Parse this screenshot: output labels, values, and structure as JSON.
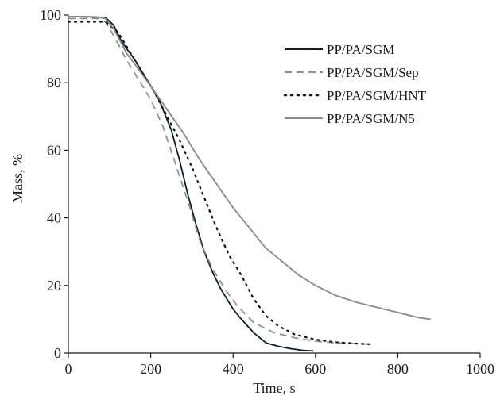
{
  "chart_data": {
    "type": "line",
    "title": "",
    "xlabel": "Time, s",
    "ylabel": "Mass, %",
    "xlim": [
      0,
      1000
    ],
    "ylim": [
      0,
      100
    ],
    "xticks": [
      0,
      200,
      400,
      600,
      800,
      1000
    ],
    "yticks": [
      0,
      20,
      40,
      60,
      80,
      100
    ],
    "grid": false,
    "legend_position": "top-right",
    "series": [
      {
        "name": "PP/PA/SGM",
        "color": "#0d1b2e",
        "style": "solid",
        "points": [
          [
            0,
            99.5
          ],
          [
            40,
            99.5
          ],
          [
            90,
            99.3
          ],
          [
            110,
            97
          ],
          [
            130,
            92
          ],
          [
            160,
            87
          ],
          [
            190,
            81
          ],
          [
            220,
            75
          ],
          [
            250,
            66
          ],
          [
            270,
            57
          ],
          [
            290,
            47
          ],
          [
            310,
            38
          ],
          [
            330,
            30
          ],
          [
            350,
            24
          ],
          [
            370,
            19
          ],
          [
            400,
            13
          ],
          [
            420,
            10
          ],
          [
            450,
            6
          ],
          [
            480,
            3
          ],
          [
            510,
            2
          ],
          [
            540,
            1.3
          ],
          [
            570,
            0.8
          ],
          [
            595,
            0.6
          ]
        ]
      },
      {
        "name": "PP/PA/SGM/Sep",
        "color": "#909090",
        "style": "dashed",
        "points": [
          [
            0,
            99
          ],
          [
            30,
            99
          ],
          [
            70,
            99
          ],
          [
            90,
            98
          ],
          [
            110,
            94
          ],
          [
            140,
            87
          ],
          [
            170,
            81
          ],
          [
            200,
            75
          ],
          [
            230,
            67
          ],
          [
            260,
            56
          ],
          [
            290,
            45
          ],
          [
            320,
            33
          ],
          [
            350,
            25
          ],
          [
            380,
            19
          ],
          [
            410,
            14
          ],
          [
            450,
            9
          ],
          [
            500,
            6
          ],
          [
            550,
            4.5
          ],
          [
            600,
            3.5
          ],
          [
            650,
            3
          ],
          [
            700,
            2.8
          ],
          [
            735,
            2.6
          ]
        ]
      },
      {
        "name": "PP/PA/SGM/HNT",
        "color": "#111111",
        "style": "dotted",
        "points": [
          [
            0,
            98
          ],
          [
            50,
            98
          ],
          [
            90,
            98
          ],
          [
            120,
            95
          ],
          [
            150,
            89
          ],
          [
            180,
            83
          ],
          [
            210,
            77
          ],
          [
            240,
            70
          ],
          [
            270,
            63
          ],
          [
            300,
            55
          ],
          [
            330,
            46
          ],
          [
            360,
            37
          ],
          [
            390,
            29
          ],
          [
            420,
            23
          ],
          [
            450,
            16
          ],
          [
            480,
            11
          ],
          [
            510,
            8
          ],
          [
            550,
            5.5
          ],
          [
            600,
            4
          ],
          [
            650,
            3.2
          ],
          [
            700,
            2.8
          ],
          [
            735,
            2.6
          ]
        ]
      },
      {
        "name": "PP/PA/SGM/N5",
        "color": "#8a8a8a",
        "style": "solid",
        "points": [
          [
            0,
            99.5
          ],
          [
            60,
            99.5
          ],
          [
            90,
            99
          ],
          [
            110,
            96
          ],
          [
            140,
            89
          ],
          [
            170,
            84
          ],
          [
            200,
            79
          ],
          [
            240,
            72
          ],
          [
            280,
            65
          ],
          [
            320,
            57
          ],
          [
            360,
            50
          ],
          [
            400,
            43
          ],
          [
            440,
            37
          ],
          [
            480,
            31
          ],
          [
            520,
            27
          ],
          [
            560,
            23
          ],
          [
            600,
            20
          ],
          [
            650,
            17
          ],
          [
            700,
            15
          ],
          [
            750,
            13.5
          ],
          [
            800,
            12
          ],
          [
            850,
            10.5
          ],
          [
            880,
            10
          ]
        ]
      }
    ]
  }
}
